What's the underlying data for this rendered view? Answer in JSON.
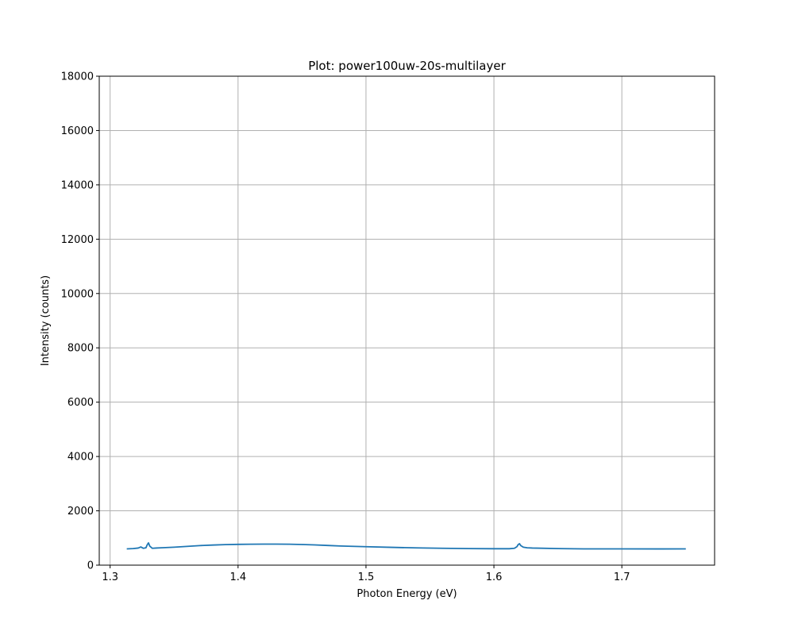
{
  "chart_data": {
    "type": "line",
    "title": "Plot: power100uw-20s-multilayer",
    "xlabel": "Photon Energy (eV)",
    "ylabel": "Intensity (counts)",
    "xlim": [
      1.2915,
      1.7725
    ],
    "ylim": [
      0,
      18000
    ],
    "xticks": [
      "1.3",
      "1.4",
      "1.5",
      "1.6",
      "1.7"
    ],
    "yticks": [
      "0",
      "2000",
      "4000",
      "6000",
      "8000",
      "10000",
      "12000",
      "14000",
      "16000",
      "18000"
    ],
    "grid": true,
    "series": [
      {
        "color": "#1f77b4",
        "x": [
          1.313,
          1.318,
          1.322,
          1.324,
          1.326,
          1.328,
          1.329,
          1.33,
          1.331,
          1.333,
          1.336,
          1.34,
          1.35,
          1.36,
          1.37,
          1.38,
          1.39,
          1.4,
          1.41,
          1.42,
          1.43,
          1.44,
          1.45,
          1.46,
          1.47,
          1.48,
          1.5,
          1.52,
          1.54,
          1.56,
          1.58,
          1.6,
          1.612,
          1.616,
          1.618,
          1.619,
          1.62,
          1.621,
          1.623,
          1.626,
          1.63,
          1.65,
          1.67,
          1.7,
          1.73,
          1.75
        ],
        "y": [
          600,
          610,
          630,
          670,
          620,
          640,
          750,
          820,
          700,
          620,
          630,
          640,
          660,
          690,
          720,
          740,
          755,
          765,
          770,
          775,
          775,
          770,
          760,
          745,
          725,
          705,
          680,
          655,
          635,
          620,
          610,
          605,
          605,
          620,
          680,
          760,
          790,
          720,
          660,
          640,
          630,
          610,
          600,
          600,
          598,
          600
        ]
      }
    ]
  }
}
